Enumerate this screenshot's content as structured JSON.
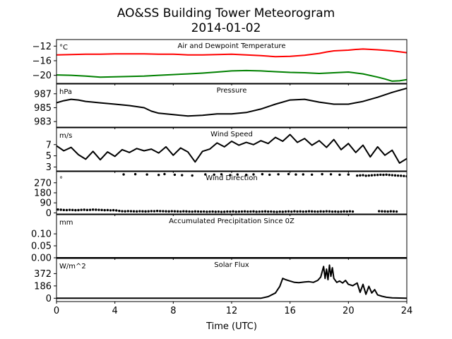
{
  "figure": {
    "title_line1": "AO&SS Building Tower Meteorogram",
    "title_line2": "2014-01-02",
    "xlabel": "Time (UTC)",
    "xlim": [
      0,
      24
    ],
    "x_ticks": [
      0,
      4,
      8,
      12,
      16,
      20,
      24
    ],
    "x_tick_labels": [
      "0",
      "4",
      "8",
      "12",
      "16",
      "20",
      "24"
    ]
  },
  "chart_data": [
    {
      "type": "line",
      "title": "Air and Dewpoint Temperature",
      "unit": "°C",
      "ylim": [
        -22.2,
        -10.2
      ],
      "y_ticks": [
        -12,
        -16,
        -20
      ],
      "y_tick_labels": [
        "−12",
        "−16",
        "−20"
      ],
      "series": [
        {
          "color": "#ff0000",
          "x": [
            0,
            1,
            2,
            3,
            4,
            5,
            6,
            7,
            8,
            9,
            10,
            11,
            12,
            13,
            14,
            15,
            16,
            17,
            18,
            18.5,
            19,
            20,
            20.5,
            21,
            22,
            23,
            24
          ],
          "y": [
            -14.4,
            -14.3,
            -14.2,
            -14.2,
            -14.1,
            -14.1,
            -14.1,
            -14.2,
            -14.2,
            -14.4,
            -14.4,
            -14.3,
            -14.2,
            -14.4,
            -14.6,
            -14.9,
            -14.8,
            -14.5,
            -14.0,
            -13.6,
            -13.3,
            -13.1,
            -12.9,
            -12.8,
            -13.0,
            -13.3,
            -13.8
          ]
        },
        {
          "color": "#008000",
          "x": [
            0,
            1,
            2,
            3,
            4,
            5,
            6,
            7,
            8,
            9,
            10,
            11,
            12,
            13,
            14,
            15,
            16,
            17,
            18,
            19,
            20,
            21,
            22,
            22.5,
            23,
            23.5,
            24
          ],
          "y": [
            -19.9,
            -20.0,
            -20.2,
            -20.5,
            -20.4,
            -20.3,
            -20.2,
            -20.0,
            -19.8,
            -19.6,
            -19.4,
            -19.1,
            -18.8,
            -18.7,
            -18.8,
            -19.0,
            -19.2,
            -19.3,
            -19.5,
            -19.3,
            -19.1,
            -19.6,
            -20.5,
            -21.0,
            -21.6,
            -21.5,
            -21.2
          ]
        }
      ]
    },
    {
      "type": "line",
      "title": "Pressure",
      "unit": "hPa",
      "ylim": [
        982.2,
        988.4
      ],
      "y_ticks": [
        987,
        985,
        983
      ],
      "y_tick_labels": [
        "987",
        "985",
        "983"
      ],
      "series": [
        {
          "color": "#000000",
          "x": [
            0,
            0.5,
            1,
            1.5,
            2,
            3,
            4,
            5,
            6,
            6.5,
            7,
            8,
            9,
            10,
            11,
            12,
            13,
            14,
            15,
            16,
            17,
            18,
            19,
            20,
            21,
            22,
            23,
            24
          ],
          "y": [
            985.7,
            986.0,
            986.2,
            986.1,
            985.9,
            985.7,
            985.5,
            985.3,
            985.0,
            984.5,
            984.2,
            984.0,
            983.8,
            983.9,
            984.1,
            984.1,
            984.3,
            984.8,
            985.5,
            986.1,
            986.2,
            985.8,
            985.5,
            985.5,
            985.9,
            986.5,
            987.2,
            987.8
          ]
        }
      ]
    },
    {
      "type": "line",
      "title": "Wind Speed",
      "unit": "m/s",
      "ylim": [
        2.3,
        10
      ],
      "y_ticks": [
        7,
        5,
        3
      ],
      "y_tick_labels": [
        "7",
        "5",
        "3"
      ],
      "series": [
        {
          "color": "#000000",
          "x": [
            0,
            0.5,
            1,
            1.5,
            2,
            2.5,
            3,
            3.5,
            4,
            4.5,
            5,
            5.5,
            6,
            6.5,
            7,
            7.5,
            8,
            8.5,
            9,
            9.5,
            10,
            10.5,
            11,
            11.5,
            12,
            12.5,
            13,
            13.5,
            14,
            14.5,
            15,
            15.5,
            16,
            16.5,
            17,
            17.5,
            18,
            18.5,
            19,
            19.5,
            20,
            20.5,
            21,
            21.5,
            22,
            22.5,
            23,
            23.5,
            24
          ],
          "y": [
            6.8,
            5.9,
            6.5,
            5.2,
            4.4,
            5.8,
            4.3,
            5.7,
            4.9,
            6.1,
            5.6,
            6.3,
            5.9,
            6.2,
            5.5,
            6.6,
            5.1,
            6.4,
            5.7,
            3.9,
            5.8,
            6.2,
            7.3,
            6.6,
            7.6,
            6.9,
            7.4,
            7.0,
            7.7,
            7.2,
            8.3,
            7.6,
            8.8,
            7.4,
            8.1,
            6.9,
            7.7,
            6.5,
            7.9,
            6.1,
            7.2,
            5.6,
            6.9,
            4.8,
            6.6,
            5.1,
            6.0,
            3.7,
            4.5
          ]
        }
      ]
    },
    {
      "type": "scatter",
      "title": "Wind Direction",
      "unit": "°",
      "ylim": [
        -10,
        370
      ],
      "y_ticks": [
        270,
        180,
        90,
        0
      ],
      "y_tick_labels": [
        "270",
        "180",
        "90",
        "0"
      ],
      "series": [
        {
          "color": "#000000",
          "x": [
            0.1,
            0.3,
            0.5,
            0.7,
            0.9,
            1.1,
            1.3,
            1.5,
            1.7,
            1.9,
            2.1,
            2.3,
            2.5,
            2.7,
            2.9,
            3.1,
            3.3,
            3.5,
            3.7,
            3.9,
            4.1,
            4.3,
            4.5,
            4.7,
            4.9,
            5.1,
            5.3,
            5.5,
            5.7,
            5.9,
            6.1,
            6.3,
            6.5,
            6.7,
            6.9,
            7.1,
            7.3,
            7.5,
            7.7,
            7.9,
            8.1,
            8.3,
            8.5,
            8.7,
            8.9,
            9.1,
            9.3,
            9.5,
            9.7,
            9.9,
            10.1,
            10.3,
            10.5,
            10.7,
            10.9,
            11.1,
            11.3,
            11.5,
            11.7,
            11.9,
            12.1,
            12.3,
            12.5,
            12.7,
            12.9,
            13.1,
            13.3,
            13.5,
            13.7,
            13.9,
            14.1,
            14.3,
            14.5,
            14.7,
            14.9,
            15.1,
            15.3,
            15.5,
            15.7,
            15.9,
            16.1,
            16.3,
            16.5,
            16.7,
            16.9,
            17.1,
            17.3,
            17.5,
            17.7,
            17.9,
            18.1,
            18.3,
            18.5,
            18.7,
            18.9,
            19.1,
            19.3,
            19.5,
            19.7,
            19.9,
            20.1,
            20.3,
            22.1,
            22.3,
            22.5,
            22.7,
            22.9,
            23.1,
            23.3,
            4.6,
            5.4,
            6.2,
            7.0,
            7.4,
            8.1,
            8.6,
            9.3,
            10.2,
            10.8,
            11.3,
            11.9,
            12.4,
            13.0,
            13.5,
            14.1,
            14.6,
            15.2,
            15.9,
            16.4,
            16.9,
            17.5,
            18.2,
            18.8,
            19.4,
            20.0,
            20.6,
            20.8,
            21.0,
            21.2,
            21.4,
            21.6,
            21.8,
            22.0,
            22.2,
            22.4,
            22.6,
            22.8,
            23.0,
            23.2,
            23.4,
            23.6,
            23.8,
            24.0
          ],
          "y": [
            30,
            28,
            26,
            25,
            27,
            26,
            24,
            25,
            27,
            28,
            26,
            27,
            29,
            28,
            27,
            26,
            24,
            25,
            23,
            24,
            22,
            18,
            15,
            14,
            16,
            15,
            14,
            13,
            15,
            14,
            13,
            14,
            16,
            15,
            17,
            16,
            15,
            14,
            13,
            15,
            14,
            13,
            12,
            14,
            13,
            12,
            11,
            13,
            12,
            11,
            12,
            10,
            11,
            12,
            10,
            11,
            9,
            10,
            12,
            11,
            13,
            10,
            11,
            12,
            13,
            11,
            12,
            13,
            10,
            11,
            12,
            13,
            11,
            12,
            10,
            9,
            11,
            10,
            12,
            13,
            11,
            14,
            12,
            13,
            11,
            12,
            14,
            13,
            12,
            11,
            13,
            12,
            14,
            13,
            11,
            12,
            10,
            11,
            13,
            12,
            14,
            12,
            15,
            14,
            13,
            12,
            14,
            13,
            12,
            345,
            347,
            344,
            340,
            348,
            342,
            338,
            335,
            345,
            343,
            346,
            339,
            344,
            341,
            345,
            347,
            342,
            346,
            348,
            344,
            345,
            343,
            347,
            346,
            342,
            344,
            334,
            336,
            338,
            333,
            335,
            337,
            339,
            340,
            342,
            341,
            343,
            340,
            338,
            336,
            334,
            333,
            331,
            328
          ]
        }
      ]
    },
    {
      "type": "line",
      "title": "Accumulated Precipitation Since 0Z",
      "unit": "mm",
      "ylim": [
        0,
        0.18
      ],
      "y_ticks": [
        0.1,
        0.05,
        0.0
      ],
      "y_tick_labels": [
        "0.10",
        "0.05",
        "0.00"
      ],
      "series": [
        {
          "color": "#000000",
          "x": [
            0,
            24
          ],
          "y": [
            0,
            0
          ]
        }
      ]
    },
    {
      "type": "line",
      "title": "Solar Flux",
      "unit": "W/m^2",
      "ylim": [
        -50,
        600
      ],
      "y_ticks": [
        372,
        186,
        0
      ],
      "y_tick_labels": [
        "372",
        "186",
        "0"
      ],
      "series": [
        {
          "color": "#000000",
          "x": [
            0,
            14,
            14.5,
            15,
            15.3,
            15.5,
            15.7,
            16,
            16.3,
            16.6,
            17,
            17.3,
            17.6,
            17.9,
            18.1,
            18.3,
            18.4,
            18.5,
            18.6,
            18.7,
            18.8,
            18.9,
            19,
            19.2,
            19.4,
            19.6,
            19.8,
            20,
            20.3,
            20.6,
            20.8,
            21,
            21.2,
            21.4,
            21.6,
            21.8,
            22,
            22.3,
            22.6,
            23,
            24
          ],
          "y": [
            0,
            0,
            25,
            80,
            180,
            300,
            280,
            260,
            240,
            235,
            245,
            250,
            240,
            270,
            320,
            480,
            300,
            440,
            280,
            500,
            330,
            460,
            300,
            240,
            260,
            230,
            270,
            210,
            190,
            230,
            90,
            210,
            60,
            180,
            80,
            130,
            50,
            30,
            15,
            5,
            0
          ]
        }
      ]
    }
  ]
}
